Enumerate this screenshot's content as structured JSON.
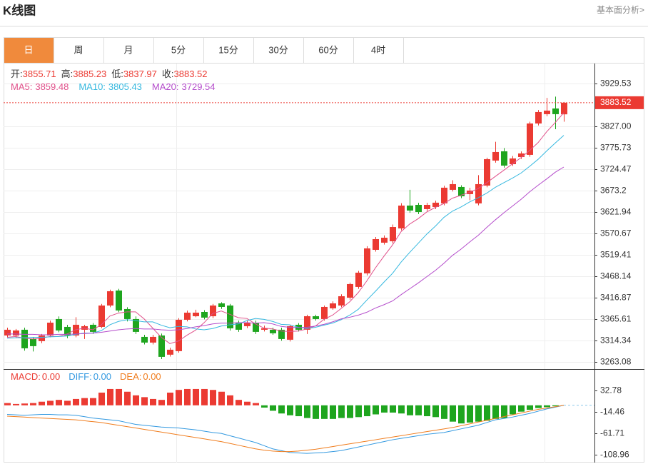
{
  "header": {
    "title": "K线图",
    "link": "基本面分析>"
  },
  "tabs": [
    "日",
    "周",
    "月",
    "5分",
    "15分",
    "30分",
    "60分",
    "4时"
  ],
  "active_tab": 0,
  "chart_data": [
    {
      "type": "candlestick",
      "ylim": [
        3246,
        3979
      ],
      "yticks": [
        3929.53,
        {
          "value": 3827,
          "label": "3827.00"
        },
        3775.73,
        3724.47,
        3673.2,
        3621.94,
        3570.67,
        3519.41,
        3468.14,
        3416.87,
        3365.61,
        3314.34,
        3263.08
      ],
      "grid": true,
      "up_color": "#eb3a32",
      "down_color": "#1ea51e",
      "ohlc_labels": [
        "开:",
        "高:",
        "低:",
        "收:"
      ],
      "open": [
        3326.4,
        3326.4,
        3340.1,
        3317.9,
        3312.8,
        3326.4,
        3365.7,
        3346.9,
        3326.4,
        3340.1,
        3352.0,
        3346.9,
        3398.1,
        3434,
        3389.6,
        3365.7,
        3323.0,
        3309.4,
        3326.4,
        3280.4,
        3288.9,
        3364.0,
        3372.5,
        3382.7,
        3372.5,
        3403.2,
        3398.1,
        3357.1,
        3348.6,
        3357.1,
        3340.1,
        3340.1,
        3340.1,
        3316.2,
        3352.0,
        3340.1,
        3372.5,
        3365.7,
        3391.3,
        3398.1,
        3416.9,
        3442.6,
        3475.0,
        3531.4,
        3548.5,
        3551.9,
        3582.6,
        3637.3,
        3639.0,
        3628.8,
        3633.9,
        3642.5,
        3675.0,
        3681.8,
        3664.7,
        3642.5,
        3685.2,
        3745.0,
        3767.2,
        3736.4,
        3753.5,
        3758.7,
        3833.8,
        3856.1,
        3869.7,
        3855.71
      ],
      "high": [
        3345,
        3342,
        3345,
        3322,
        3330,
        3362,
        3372,
        3352,
        3370,
        3352,
        3356,
        3402,
        3436,
        3438,
        3394,
        3372,
        3328,
        3328,
        3331,
        3297,
        3368,
        3386,
        3388,
        3387,
        3402,
        3406,
        3402,
        3362,
        3362,
        3362,
        3350,
        3345,
        3345,
        3352,
        3356,
        3376,
        3376,
        3398,
        3408,
        3425,
        3453,
        3481,
        3540,
        3562,
        3566,
        3592,
        3643,
        3675,
        3644,
        3644,
        3649,
        3685,
        3698,
        3686,
        3680,
        3710,
        3752,
        3790,
        3775,
        3756,
        3767,
        3838,
        3866,
        3895,
        3898,
        3885.23
      ],
      "low": [
        3322,
        3320,
        3290,
        3288,
        3308,
        3322,
        3334,
        3320,
        3322,
        3318,
        3330,
        3344,
        3394,
        3382,
        3360,
        3330,
        3305,
        3305,
        3270,
        3276,
        3285,
        3360,
        3370,
        3365,
        3368,
        3390,
        3338,
        3335,
        3344,
        3330,
        3336,
        3328,
        3314,
        3312,
        3336,
        3330,
        3362,
        3362,
        3388,
        3394,
        3412,
        3438,
        3470,
        3527,
        3544,
        3547,
        3578,
        3620,
        3617,
        3624,
        3629,
        3638,
        3671,
        3655,
        3650,
        3638,
        3681,
        3740,
        3728,
        3732,
        3749,
        3754,
        3829,
        3851,
        3820,
        3837.97
      ],
      "close": [
        3340.1,
        3338.4,
        3295.7,
        3300.8,
        3326.4,
        3357.1,
        3338.4,
        3326.4,
        3352.0,
        3348.6,
        3335.0,
        3398.1,
        3432.3,
        3386.2,
        3365.7,
        3335.0,
        3309.4,
        3323.0,
        3275.2,
        3292.3,
        3364.0,
        3381.0,
        3381.0,
        3369.1,
        3398.1,
        3394.7,
        3343.5,
        3340.1,
        3357.1,
        3335.0,
        3343.5,
        3331.6,
        3317.9,
        3348.6,
        3340.1,
        3372.5,
        3365.7,
        3394.7,
        3403.2,
        3420.3,
        3449.4,
        3476.7,
        3534.8,
        3557.0,
        3560.4,
        3586.0,
        3637.3,
        3625.4,
        3621.9,
        3639.0,
        3644.2,
        3680.1,
        3688.6,
        3659.6,
        3673.2,
        3688.6,
        3748.4,
        3765.5,
        3733.0,
        3750.1,
        3762.1,
        3833.8,
        3861.2,
        3864.6,
        3856.1,
        3883.52
      ],
      "series": [
        {
          "name": "MA5:",
          "color": "#e0508a",
          "values": [
            3322,
            3324,
            3320,
            3318,
            3320,
            3324,
            3324,
            3330,
            3340,
            3344,
            3340,
            3352,
            3373,
            3380,
            3383,
            3383,
            3366,
            3344,
            3322,
            3307,
            3313,
            3327,
            3339,
            3357,
            3379,
            3385,
            3377,
            3369,
            3367,
            3354,
            3344,
            3342,
            3337,
            3336,
            3337,
            3342,
            3349,
            3365,
            3375,
            3391,
            3407,
            3429,
            3457,
            3488,
            3516,
            3543,
            3575,
            3593,
            3606,
            3622,
            3633,
            3642,
            3655,
            3662,
            3669,
            3678,
            3692,
            3707,
            3722,
            3737,
            3752,
            3769,
            3788,
            3814,
            3836,
            3859.48
          ]
        },
        {
          "name": "MA10:",
          "color": "#35b8df",
          "values": [
            3320,
            3321,
            3321,
            3322,
            3322,
            3323,
            3324,
            3325,
            3329,
            3332,
            3332,
            3338,
            3352,
            3360,
            3364,
            3362,
            3359,
            3359,
            3351,
            3345,
            3348,
            3347,
            3342,
            3340,
            3343,
            3349,
            3352,
            3354,
            3362,
            3367,
            3365,
            3360,
            3353,
            3352,
            3346,
            3343,
            3346,
            3351,
            3356,
            3364,
            3375,
            3389,
            3411,
            3432,
            3454,
            3475,
            3502,
            3525,
            3547,
            3569,
            3588,
            3609,
            3624,
            3634,
            3646,
            3656,
            3667,
            3681,
            3692,
            3703,
            3715,
            3731,
            3748,
            3768,
            3787,
            3805.43
          ]
        },
        {
          "name": "MA20:",
          "color": "#b44ccb",
          "values": [
            3330,
            3330,
            3329,
            3329,
            3328,
            3328,
            3329,
            3329,
            3330,
            3331,
            3332,
            3334,
            3337,
            3340,
            3342,
            3343,
            3342,
            3342,
            3340,
            3339,
            3340,
            3343,
            3347,
            3350,
            3354,
            3356,
            3356,
            3357,
            3357,
            3356,
            3357,
            3354,
            3348,
            3346,
            3345,
            3346,
            3349,
            3353,
            3359,
            3366,
            3370,
            3375,
            3382,
            3392,
            3400,
            3409,
            3424,
            3438,
            3452,
            3467,
            3482,
            3499,
            3518,
            3533,
            3550,
            3566,
            3585,
            3603,
            3620,
            3636,
            3652,
            3670,
            3686,
            3701,
            3717,
            3729.54
          ]
        }
      ]
    },
    {
      "type": "macd",
      "ylim": [
        -126.3,
        80
      ],
      "yticks": [
        32.78,
        -14.46,
        -61.71,
        -108.96
      ],
      "bars": {
        "name": "MACD:",
        "readout": "0.00",
        "up_color": "#eb3a32",
        "down_color": "#1ea51e",
        "values": [
          5,
          3,
          4,
          5,
          8,
          10,
          12,
          10,
          14,
          16,
          16,
          28,
          36,
          36,
          30,
          22,
          18,
          14,
          12,
          28,
          34,
          36,
          36,
          36,
          34,
          30,
          22,
          12,
          8,
          5,
          -5,
          -12,
          -18,
          -22,
          -24,
          -28,
          -30,
          -30,
          -30,
          -28,
          -28,
          -26,
          -24,
          -20,
          -16,
          -16,
          -18,
          -22,
          -22,
          -24,
          -26,
          -30,
          -36,
          -40,
          -38,
          -36,
          -34,
          -30,
          -28,
          -20,
          -14,
          -10,
          -6,
          -4,
          -2,
          0
        ]
      },
      "series": [
        {
          "name": "DIFF:",
          "readout": "0.00",
          "color": "#3399e0",
          "values": [
            -20,
            -21,
            -22,
            -21,
            -20,
            -20,
            -21,
            -21,
            -22,
            -25,
            -28,
            -30,
            -32,
            -34,
            -38,
            -42,
            -44,
            -46,
            -48,
            -49,
            -50,
            -52,
            -54,
            -57,
            -60,
            -62,
            -67,
            -72,
            -77,
            -82,
            -89,
            -96,
            -100,
            -104,
            -105,
            -106,
            -105,
            -104,
            -102,
            -100,
            -96,
            -92,
            -88,
            -84,
            -80,
            -76,
            -73,
            -70,
            -67,
            -64,
            -62,
            -60,
            -56,
            -52,
            -48,
            -44,
            -38,
            -32,
            -29,
            -26,
            -22,
            -18,
            -13,
            -8,
            -4,
            0
          ]
        },
        {
          "name": "DEA:",
          "readout": "0.00",
          "color": "#f07d1e",
          "values": [
            -24,
            -25,
            -26,
            -27,
            -28,
            -29,
            -30,
            -31,
            -32,
            -34,
            -36,
            -38,
            -41,
            -44,
            -47,
            -50,
            -53,
            -56,
            -59,
            -62,
            -65,
            -68,
            -71,
            -74,
            -77,
            -80,
            -84,
            -88,
            -92,
            -96,
            -99,
            -101,
            -102,
            -102,
            -101,
            -99,
            -97,
            -94,
            -91,
            -88,
            -85,
            -82,
            -79,
            -76,
            -73,
            -70,
            -67,
            -64,
            -61,
            -58,
            -55,
            -52,
            -49,
            -45,
            -41,
            -37,
            -33,
            -29,
            -25,
            -21,
            -17,
            -13,
            -9,
            -6,
            -3,
            0
          ]
        }
      ]
    }
  ]
}
